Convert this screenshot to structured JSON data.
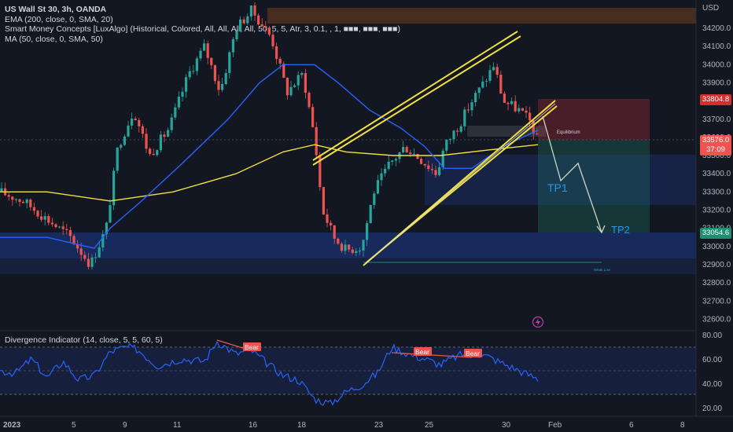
{
  "header": {
    "symbol_line": "US Wall St 30, 3h, OANDA",
    "ema_line": "EMA (200, close, 0, SMA, 20)",
    "smc_line": "Smart Money Concepts [LuxAlgo] (Historical, Colored, All, All, All, All, 50, 5, 5, Atr, 3, 0.1, , 1, ■■■, ■■■, ■■■)",
    "ma_line": "MA (50, close, 0, SMA, 50)",
    "divergence_line": "Divergence Indicator (14, close, 5, 5, 60, 5)"
  },
  "price_axis": {
    "currency": "USD",
    "ticks": [
      "34200.0",
      "34100.0",
      "34000.0",
      "33900.0",
      "33800.0",
      "33700.0",
      "33600.0",
      "33500.0",
      "33400.0",
      "33300.0",
      "33200.0",
      "33100.0",
      "33000.0",
      "32900.0",
      "32800.0",
      "32700.0",
      "32600.0"
    ]
  },
  "price_tags": {
    "stop": "33804.8",
    "current": "33576.0",
    "countdown": "37:09",
    "target": "33054.6"
  },
  "time_axis": [
    "2023",
    "5",
    "9",
    "11",
    "16",
    "18",
    "23",
    "25",
    "30",
    "Feb",
    "6",
    "8"
  ],
  "annotations": {
    "tp1": "TP1",
    "tp2": "TP2",
    "equilibrium": "Equilibrium",
    "weak_low": "Weak Low",
    "bear": "Bear"
  },
  "oscillator_axis": [
    "80.00",
    "60.00",
    "40.00",
    "20.00"
  ],
  "colors": {
    "background": "#131722",
    "up": "#26a69a",
    "down": "#ef5350",
    "ema": "#f0e040",
    "ma": "#2962ff",
    "channel": "#f0e040",
    "rsi": "#2962ff",
    "tp_text": "#2196f3"
  },
  "chart_data": {
    "type": "candlestick",
    "title": "US Wall St 30, 3h, OANDA",
    "ylim": [
      32520,
      34330
    ],
    "overlays": [
      "EMA 200",
      "MA 50",
      "ascending channel",
      "TP1",
      "TP2"
    ],
    "close_path": [
      {
        "x": "2023",
        "y": 33300
      },
      {
        "x": "5",
        "y": 33200
      },
      {
        "x": "9",
        "y": 33600
      },
      {
        "x": "11",
        "y": 34000
      },
      {
        "x": "16",
        "y": 34150
      },
      {
        "x": "18",
        "y": 33500
      },
      {
        "x": "23",
        "y": 33350
      },
      {
        "x": "25",
        "y": 33550
      },
      {
        "x": "30",
        "y": 34000
      },
      {
        "x": "31",
        "y": 33576
      }
    ],
    "indicator": {
      "name": "Divergence Indicator",
      "ylim": [
        15,
        85
      ],
      "levels": [
        70,
        50,
        30
      ]
    }
  }
}
